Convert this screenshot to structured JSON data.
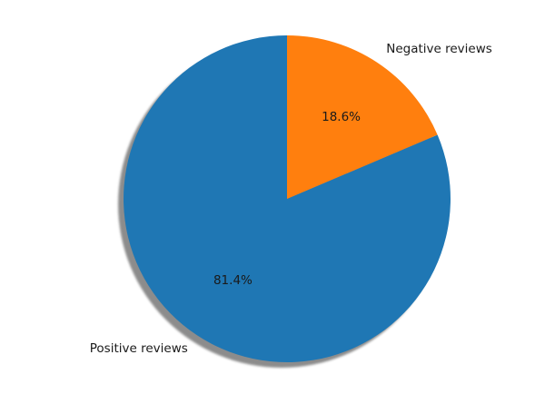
{
  "chart_data": {
    "type": "pie",
    "title": "",
    "shadow": true,
    "start_angle_deg": 90,
    "direction": "counterclockwise",
    "slices": [
      {
        "label": "Positive reviews",
        "value": 81.4,
        "pct_label": "81.4%",
        "color": "#1f77b4"
      },
      {
        "label": "Negative reviews",
        "value": 18.6,
        "pct_label": "18.6%",
        "color": "#ff7f0e"
      }
    ]
  }
}
